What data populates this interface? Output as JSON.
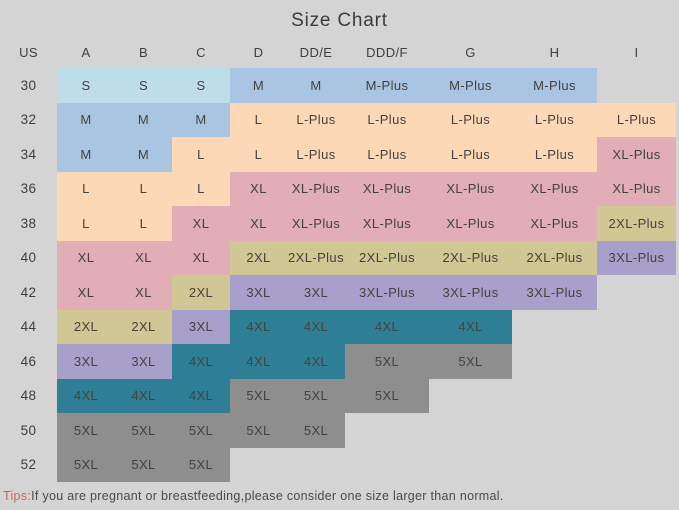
{
  "title": "Size Chart",
  "chart_data": {
    "type": "table",
    "title": "Size Chart",
    "columns": [
      "US",
      "A",
      "B",
      "C",
      "D",
      "DD/E",
      "DDD/F",
      "G",
      "H",
      "I"
    ],
    "rows": [
      {
        "us": "30",
        "cells": [
          "S",
          "S",
          "S",
          "M",
          "M",
          "M-Plus",
          "M-Plus",
          "M-Plus",
          ""
        ]
      },
      {
        "us": "32",
        "cells": [
          "M",
          "M",
          "M",
          "L",
          "L-Plus",
          "L-Plus",
          "L-Plus",
          "L-Plus",
          "L-Plus"
        ]
      },
      {
        "us": "34",
        "cells": [
          "M",
          "M",
          "L",
          "L",
          "L-Plus",
          "L-Plus",
          "L-Plus",
          "L-Plus",
          "XL-Plus"
        ]
      },
      {
        "us": "36",
        "cells": [
          "L",
          "L",
          "L",
          "XL",
          "XL-Plus",
          "XL-Plus",
          "XL-Plus",
          "XL-Plus",
          "XL-Plus"
        ]
      },
      {
        "us": "38",
        "cells": [
          "L",
          "L",
          "XL",
          "XL",
          "XL-Plus",
          "XL-Plus",
          "XL-Plus",
          "XL-Plus",
          "2XL-Plus"
        ]
      },
      {
        "us": "40",
        "cells": [
          "XL",
          "XL",
          "XL",
          "2XL",
          "2XL-Plus",
          "2XL-Plus",
          "2XL-Plus",
          "2XL-Plus",
          "3XL-Plus"
        ]
      },
      {
        "us": "42",
        "cells": [
          "XL",
          "XL",
          "2XL",
          "3XL",
          "3XL",
          "3XL-Plus",
          "3XL-Plus",
          "3XL-Plus",
          ""
        ]
      },
      {
        "us": "44",
        "cells": [
          "2XL",
          "2XL",
          "3XL",
          "4XL",
          "4XL",
          "4XL",
          "4XL",
          "",
          ""
        ]
      },
      {
        "us": "46",
        "cells": [
          "3XL",
          "3XL",
          "4XL",
          "4XL",
          "4XL",
          "5XL",
          "5XL",
          "",
          ""
        ]
      },
      {
        "us": "48",
        "cells": [
          "4XL",
          "4XL",
          "4XL",
          "5XL",
          "5XL",
          "5XL",
          "",
          "",
          ""
        ]
      },
      {
        "us": "50",
        "cells": [
          "5XL",
          "5XL",
          "5XL",
          "5XL",
          "5XL",
          "",
          "",
          "",
          ""
        ]
      },
      {
        "us": "52",
        "cells": [
          "5XL",
          "5XL",
          "5XL",
          "",
          "",
          "",
          "",
          "",
          ""
        ]
      }
    ],
    "cell_colors_by_size": {
      "S": "#bddee9",
      "M": "#a9c5e2",
      "L": "#fcd8b6",
      "XL": "#e0aeb4",
      "2XL": "#cfc794",
      "3XL": "#a8a0ca",
      "4XL": "#2e7f96",
      "5XL": "#8e8e8e"
    },
    "background_color": "#d4d4d4",
    "text_color": "#45423e",
    "legend_position": "none",
    "grid": false
  },
  "footer": {
    "tips_label": "Tips:",
    "tips_text": "If you are pregnant or breastfeeding,please consider one size larger than normal."
  }
}
